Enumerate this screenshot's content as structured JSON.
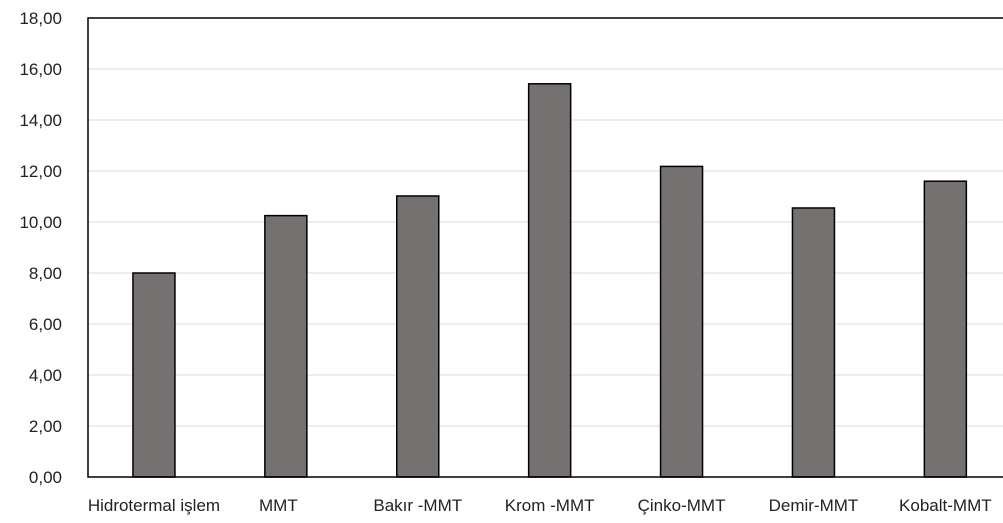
{
  "chart_data": {
    "type": "bar",
    "title": "",
    "xlabel": "",
    "ylabel": "",
    "categories": [
      "Hidrotermal işlem",
      "MMT",
      "Bakır -MMT",
      "Krom -MMT",
      "Çinko-MMT",
      "Demir-MMT",
      "Kobalt-MMT"
    ],
    "values": [
      8.0,
      10.25,
      11.02,
      15.42,
      12.18,
      10.55,
      11.6
    ],
    "ylim": [
      0,
      18
    ],
    "yticks": [
      0,
      2,
      4,
      6,
      8,
      10,
      12,
      14,
      16,
      18
    ],
    "ytick_labels": [
      "0,00",
      "2,00",
      "4,00",
      "6,00",
      "8,00",
      "10,00",
      "12,00",
      "14,00",
      "16,00",
      "18,00"
    ],
    "grid": "horizontal",
    "legend": "none",
    "bar_color": "#767171",
    "bar_edge_color": "#000000",
    "grid_color": "#d9d9d9"
  }
}
